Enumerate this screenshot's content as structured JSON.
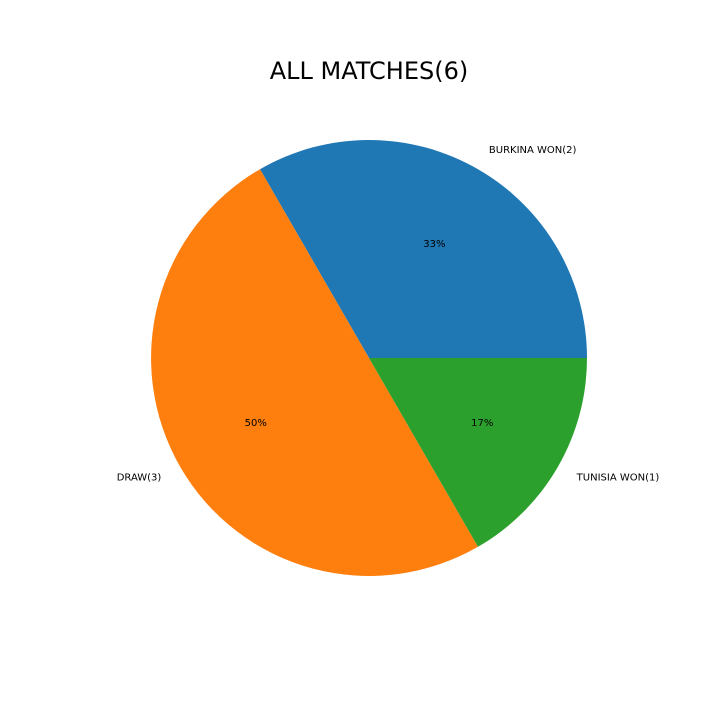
{
  "chart_data": {
    "type": "pie",
    "title": "ALL MATCHES(6)",
    "categories": [
      "BURKINA WON(2)",
      "DRAW(3)",
      "TUNISIA WON(1)"
    ],
    "values": [
      2,
      3,
      1
    ],
    "percent_labels": [
      "33%",
      "50%",
      "17%"
    ],
    "colors": [
      "#1f77b4",
      "#ff7f0e",
      "#2ca02c"
    ],
    "start_angle_deg": 0,
    "direction": "counterclockwise",
    "legend": "none"
  }
}
